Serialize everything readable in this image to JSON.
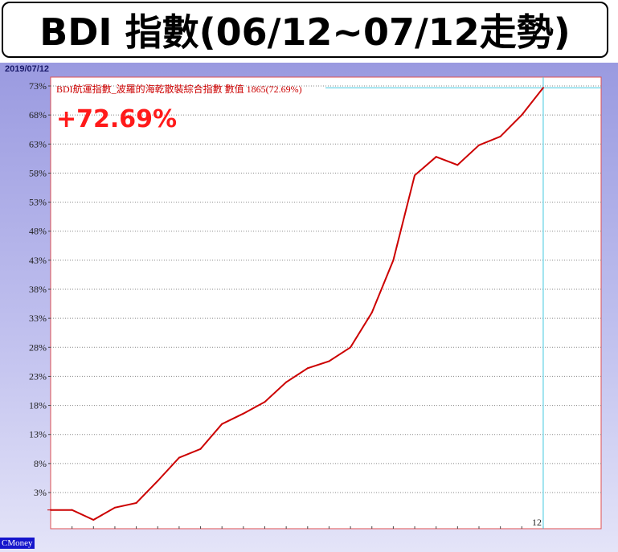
{
  "header": {
    "title": "BDI 指數(06/12~07/12走勢)"
  },
  "date_label": "2019/07/12",
  "brand": "CMoney",
  "colors": {
    "line": "#cc0000",
    "cursor": "#40c8e0",
    "grid": "#888888",
    "big_label": "#ff1a1a"
  },
  "chart_data": {
    "type": "line",
    "title": "",
    "legend_text": "BDI航運指數_波羅的海乾散裝綜合指數 數值 1865(72.69%)",
    "highlight_value": "+72.69%",
    "y_ticks": [
      "73%",
      "68%",
      "63%",
      "58%",
      "53%",
      "48%",
      "43%",
      "38%",
      "33%",
      "28%",
      "23%",
      "18%",
      "13%",
      "8%",
      "3%"
    ],
    "ylim": [
      -2,
      75
    ],
    "x_marker_label": "12",
    "grid": true,
    "series": [
      {
        "values": [
          0,
          0,
          -1.7,
          0.4,
          1.2,
          5,
          9,
          10.5,
          14.8,
          16.6,
          18.6,
          22,
          24.4,
          25.6,
          28,
          34,
          43,
          57.6,
          60.8,
          59.4,
          62.8,
          64.3,
          68,
          72.69
        ]
      }
    ],
    "cursor_index": 23
  }
}
